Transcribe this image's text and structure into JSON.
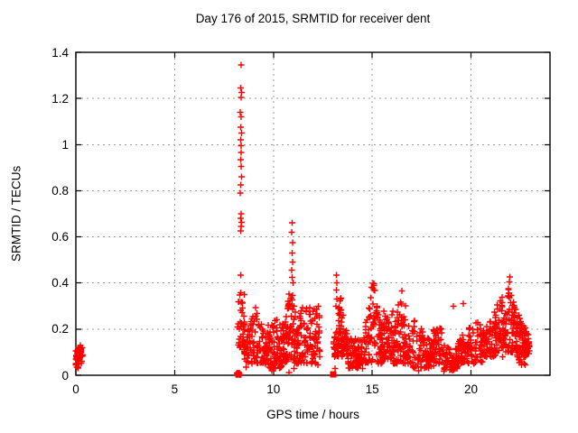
{
  "chart_data": {
    "type": "scatter",
    "title": "Day 176 of 2015, SRMTID for receiver dent",
    "xlabel": "GPS time / hours",
    "ylabel": "SRMTID / TECUs",
    "xlim": [
      0,
      24
    ],
    "ylim": [
      0,
      1.4
    ],
    "xticks": {
      "values": [
        0,
        5,
        10,
        15,
        20
      ],
      "labels": [
        "0",
        "5",
        "10",
        "15",
        "20"
      ]
    },
    "yticks": {
      "values": [
        0,
        0.2,
        0.4,
        0.6,
        0.8,
        1.0,
        1.2,
        1.4
      ],
      "labels": [
        "0",
        "0.2",
        "0.4",
        "0.6",
        "0.8",
        "1",
        "1.2",
        "1.4"
      ]
    },
    "grid": true,
    "legend": "none",
    "marker": {
      "shape": "plus",
      "color": "#ff0000",
      "size": 7
    },
    "grid_color": "#999999",
    "border_color": "#000000",
    "seed": 176,
    "zero_square_x": [
      8.23,
      13.02
    ],
    "points": [
      [
        8.36,
        1.345
      ],
      [
        8.34,
        1.245
      ],
      [
        8.38,
        1.225
      ],
      [
        8.36,
        1.205
      ],
      [
        8.33,
        1.14
      ],
      [
        8.37,
        1.12
      ],
      [
        8.35,
        1.075
      ],
      [
        8.38,
        1.05
      ],
      [
        8.34,
        1.02
      ],
      [
        8.36,
        0.995
      ],
      [
        8.37,
        0.965
      ],
      [
        8.34,
        0.935
      ],
      [
        8.36,
        0.905
      ],
      [
        8.38,
        0.86
      ],
      [
        8.35,
        0.825
      ],
      [
        8.33,
        0.79
      ],
      [
        8.37,
        0.7
      ],
      [
        8.35,
        0.68
      ],
      [
        8.38,
        0.662
      ],
      [
        8.36,
        0.645
      ],
      [
        8.34,
        0.625
      ],
      [
        8.35,
        0.435
      ],
      [
        10.95,
        0.66
      ],
      [
        10.92,
        0.62
      ],
      [
        10.97,
        0.575
      ],
      [
        10.94,
        0.53
      ],
      [
        10.96,
        0.49
      ],
      [
        10.93,
        0.455
      ],
      [
        10.95,
        0.425
      ],
      [
        11.0,
        0.4
      ],
      [
        13.18,
        0.435
      ],
      [
        13.22,
        0.4
      ],
      [
        13.19,
        0.37
      ],
      [
        13.21,
        0.33
      ],
      [
        13.17,
        0.3
      ],
      [
        10.78,
        0.012
      ],
      [
        11.03,
        0.03
      ],
      [
        13.12,
        0.03
      ],
      [
        14.32,
        0.045
      ],
      [
        8.62,
        0.035
      ],
      [
        9.92,
        0.02
      ],
      [
        12.24,
        0.045
      ],
      [
        17.35,
        0.02
      ],
      [
        18.62,
        0.018
      ],
      [
        22.55,
        0.045
      ],
      [
        19.1,
        0.3
      ],
      [
        19.62,
        0.31
      ]
    ],
    "clusters": [
      {
        "x0": 0.0,
        "x1": 0.35,
        "n": 50,
        "y0": 0.03,
        "y1": 0.13,
        "s": "blob"
      },
      {
        "x0": 8.15,
        "x1": 8.32,
        "n": 8,
        "y0": 0.0,
        "y1": 0.012,
        "s": "blob"
      },
      {
        "x0": 8.18,
        "x1": 8.55,
        "n": 40,
        "y0": 0.12,
        "y1": 0.36,
        "s": "flat"
      },
      {
        "x0": 8.5,
        "x1": 9.7,
        "n": 110,
        "y0": 0.05,
        "y1": 0.31,
        "s": "peak"
      },
      {
        "x0": 9.7,
        "x1": 10.5,
        "n": 90,
        "y0": 0.03,
        "y1": 0.24,
        "s": "flat"
      },
      {
        "x0": 10.5,
        "x1": 11.3,
        "n": 95,
        "y0": 0.05,
        "y1": 0.42,
        "s": "peak"
      },
      {
        "x0": 11.3,
        "x1": 12.35,
        "n": 100,
        "y0": 0.05,
        "y1": 0.3,
        "s": "flat"
      },
      {
        "x0": 13.05,
        "x1": 13.75,
        "n": 90,
        "y0": 0.08,
        "y1": 0.34,
        "s": "peak"
      },
      {
        "x0": 13.75,
        "x1": 14.55,
        "n": 80,
        "y0": 0.03,
        "y1": 0.16,
        "s": "flat"
      },
      {
        "x0": 14.55,
        "x1": 15.55,
        "n": 110,
        "y0": 0.05,
        "y1": 0.43,
        "s": "peak"
      },
      {
        "x0": 15.55,
        "x1": 16.05,
        "n": 60,
        "y0": 0.07,
        "y1": 0.28,
        "s": "flat"
      },
      {
        "x0": 16.05,
        "x1": 16.95,
        "n": 100,
        "y0": 0.05,
        "y1": 0.4,
        "s": "peak"
      },
      {
        "x0": 16.95,
        "x1": 18.1,
        "n": 95,
        "y0": 0.03,
        "y1": 0.26,
        "s": "fall"
      },
      {
        "x0": 18.1,
        "x1": 18.55,
        "n": 45,
        "y0": 0.05,
        "y1": 0.21,
        "s": "flat"
      },
      {
        "x0": 18.55,
        "x1": 19.35,
        "n": 65,
        "y0": 0.02,
        "y1": 0.13,
        "s": "flat"
      },
      {
        "x0": 19.35,
        "x1": 20.6,
        "n": 110,
        "y0": 0.05,
        "y1": 0.28,
        "s": "rise"
      },
      {
        "x0": 20.6,
        "x1": 21.6,
        "n": 110,
        "y0": 0.08,
        "y1": 0.35,
        "s": "rise"
      },
      {
        "x0": 21.6,
        "x1": 22.35,
        "n": 90,
        "y0": 0.1,
        "y1": 0.44,
        "s": "peak"
      },
      {
        "x0": 22.25,
        "x1": 22.95,
        "n": 80,
        "y0": 0.08,
        "y1": 0.3,
        "s": "fall"
      },
      {
        "x0": 22.4,
        "x1": 22.75,
        "n": 12,
        "y0": 0.04,
        "y1": 0.1,
        "s": "blob"
      }
    ]
  }
}
